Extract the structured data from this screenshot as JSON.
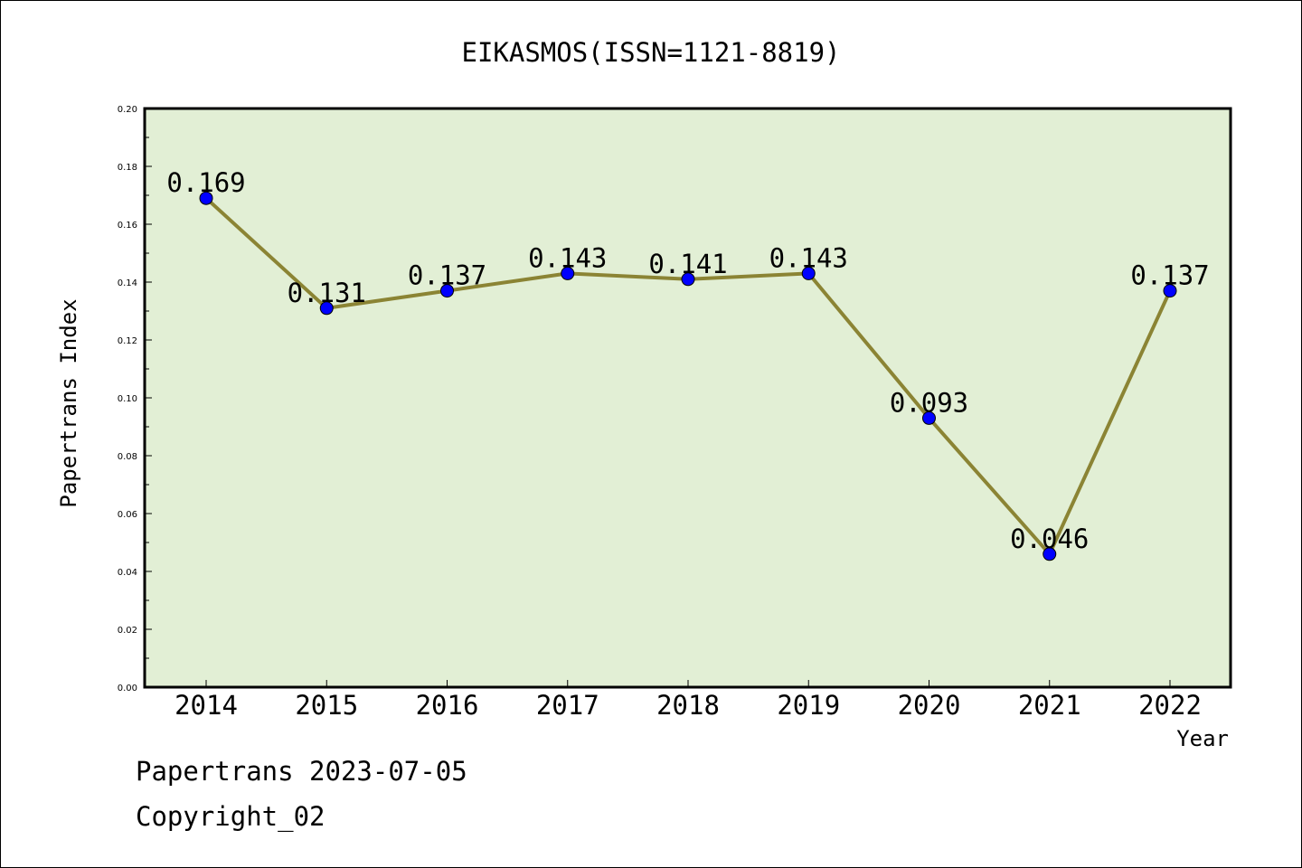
{
  "chart_data": {
    "type": "line",
    "title": "EIKASMOS(ISSN=1121-8819)",
    "xlabel": "Year",
    "ylabel": "Papertrans Index",
    "categories": [
      "2014",
      "2015",
      "2016",
      "2017",
      "2018",
      "2019",
      "2020",
      "2021",
      "2022"
    ],
    "series": [
      {
        "values": [
          0.169,
          0.131,
          0.137,
          0.143,
          0.141,
          0.143,
          0.093,
          0.046,
          0.137
        ],
        "data_labels": [
          "0.169",
          "0.131",
          "0.137",
          "0.143",
          "0.141",
          "0.143",
          "0.093",
          "0.046",
          "0.137"
        ],
        "line_color": "#8b8434",
        "marker_color": "#0000ff"
      }
    ],
    "ylim": [
      0,
      0.2
    ],
    "yticks": [
      "0.00",
      "0.02",
      "0.04",
      "0.06",
      "0.08",
      "0.10",
      "0.12",
      "0.14",
      "0.16",
      "0.18",
      "0.20"
    ],
    "grid": false,
    "legend": "none",
    "plot_background": "#e2efd5"
  },
  "footer": {
    "date_line": "Papertrans 2023-07-05",
    "copyright": "Copyright_02"
  }
}
